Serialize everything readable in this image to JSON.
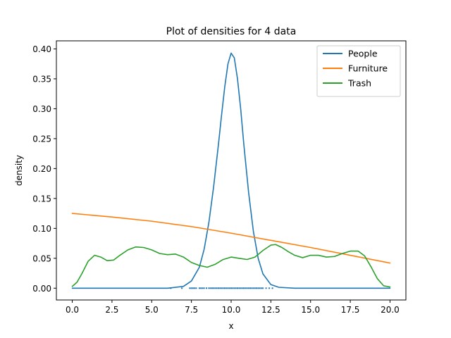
{
  "chart_data": {
    "type": "line",
    "title": "Plot of densities for 4 data",
    "xlabel": "x",
    "ylabel": "density",
    "xlim": [
      -1.0,
      21.0
    ],
    "ylim": [
      -0.0197,
      0.4135
    ],
    "xticks": [
      0.0,
      2.5,
      5.0,
      7.5,
      10.0,
      12.5,
      15.0,
      17.5,
      20.0
    ],
    "xtick_labels": [
      "0.0",
      "2.5",
      "5.0",
      "7.5",
      "10.0",
      "12.5",
      "15.0",
      "17.5",
      "20.0"
    ],
    "yticks": [
      0.0,
      0.05,
      0.1,
      0.15,
      0.2,
      0.25,
      0.3,
      0.35,
      0.4
    ],
    "ytick_labels": [
      "0.00",
      "0.05",
      "0.10",
      "0.15",
      "0.20",
      "0.25",
      "0.30",
      "0.35",
      "0.40"
    ],
    "legend_position": "top-right",
    "grid": false,
    "series": [
      {
        "name": "People",
        "color": "#1f77b4",
        "x": [
          0,
          6.0,
          7.0,
          7.5,
          8.0,
          8.3,
          8.6,
          8.9,
          9.2,
          9.4,
          9.6,
          9.8,
          10.0,
          10.2,
          10.4,
          10.6,
          10.8,
          11.1,
          11.4,
          11.7,
          12.0,
          12.5,
          13.0,
          14.0,
          20.0
        ],
        "y": [
          0,
          0,
          0.003,
          0.012,
          0.035,
          0.065,
          0.11,
          0.17,
          0.24,
          0.29,
          0.337,
          0.375,
          0.393,
          0.385,
          0.35,
          0.3,
          0.24,
          0.16,
          0.095,
          0.05,
          0.024,
          0.006,
          0.0015,
          0,
          0
        ]
      },
      {
        "name": "Furniture",
        "color": "#ff7f0e",
        "x": [
          0,
          2.5,
          5,
          7.5,
          10,
          12.5,
          15,
          17.5,
          20
        ],
        "y": [
          0.125,
          0.119,
          0.112,
          0.103,
          0.092,
          0.08,
          0.068,
          0.055,
          0.042
        ]
      },
      {
        "name": "Trash",
        "color": "#2ca02c",
        "x": [
          0,
          0.3,
          0.6,
          1.0,
          1.4,
          1.8,
          2.2,
          2.6,
          3.0,
          3.5,
          4.0,
          4.5,
          5.0,
          5.5,
          6.0,
          6.5,
          7.0,
          7.5,
          8.0,
          8.5,
          9.0,
          9.5,
          10.0,
          10.5,
          11.0,
          11.5,
          12.0,
          12.5,
          12.8,
          13.2,
          13.6,
          14.0,
          14.5,
          15.0,
          15.5,
          16.0,
          16.5,
          17.0,
          17.5,
          18.0,
          18.4,
          18.8,
          19.2,
          19.6,
          20.0
        ],
        "y": [
          0.003,
          0.01,
          0.024,
          0.045,
          0.055,
          0.052,
          0.046,
          0.047,
          0.055,
          0.064,
          0.069,
          0.068,
          0.064,
          0.058,
          0.056,
          0.057,
          0.052,
          0.043,
          0.038,
          0.035,
          0.04,
          0.048,
          0.052,
          0.05,
          0.048,
          0.052,
          0.063,
          0.072,
          0.073,
          0.068,
          0.061,
          0.055,
          0.051,
          0.055,
          0.055,
          0.052,
          0.053,
          0.058,
          0.062,
          0.062,
          0.054,
          0.036,
          0.016,
          0.004,
          0.002
        ]
      }
    ],
    "rug": {
      "color": "#1f77b4",
      "y": 0,
      "x": [
        6.2,
        6.9,
        7.4,
        7.5,
        7.6,
        7.7,
        7.8,
        8.0,
        8.1,
        8.2,
        8.3,
        8.45,
        8.6,
        8.7,
        8.8,
        8.9,
        9.0,
        9.1,
        9.2,
        9.3,
        9.4,
        9.5,
        9.6,
        9.7,
        9.8,
        9.9,
        10.0,
        10.1,
        10.2,
        10.3,
        10.4,
        10.5,
        10.6,
        10.7,
        10.8,
        10.9,
        11.0,
        11.1,
        11.2,
        11.3,
        11.4,
        11.5,
        11.6,
        11.7,
        11.8,
        11.9,
        12.0,
        12.2,
        12.4,
        12.6
      ]
    }
  }
}
